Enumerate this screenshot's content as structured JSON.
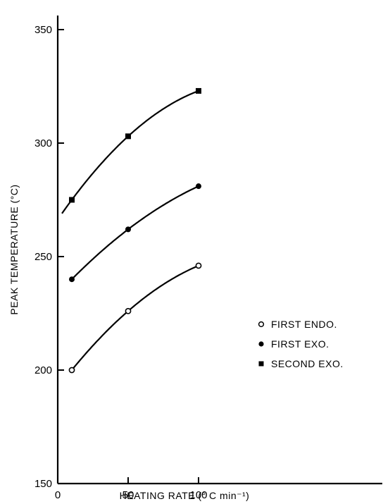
{
  "chart_data": {
    "type": "scatter",
    "xlabel": "HEATING RATE (° C min⁻¹)",
    "ylabel": "PEAK TEMPERATURE (°C)",
    "xlim": [
      0,
      150
    ],
    "ylim": [
      150,
      350
    ],
    "x_ticks": [
      0,
      50,
      100
    ],
    "y_ticks": [
      150,
      200,
      250,
      300,
      350
    ],
    "x_tick_labels": [
      "0",
      "50",
      "100"
    ],
    "y_tick_labels": [
      "150",
      "200",
      "250",
      "300",
      "350"
    ],
    "grid": false,
    "legend_position": "right",
    "series": [
      {
        "name": "FIRST ENDO.",
        "marker": "open-circle",
        "x": [
          10,
          50,
          100
        ],
        "y": [
          200,
          226,
          246
        ]
      },
      {
        "name": "FIRST EXO.",
        "marker": "filled-circle",
        "x": [
          10,
          50,
          100
        ],
        "y": [
          240,
          262,
          281
        ]
      },
      {
        "name": "SECOND EXO.",
        "marker": "filled-square",
        "x": [
          10,
          50,
          100
        ],
        "y": [
          275,
          303,
          323
        ]
      }
    ]
  }
}
